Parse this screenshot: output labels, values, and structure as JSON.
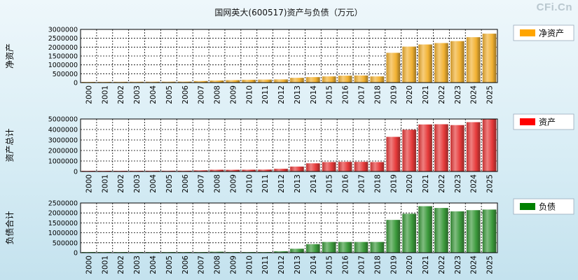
{
  "title": "国网英大(600517)资产与负债（万元）",
  "watermark": "CFi.Cn",
  "colors": {
    "net_assets": "#f2b233",
    "net_assets_legend": "#ffa500",
    "total_assets": "#e63a3a",
    "total_assets_legend": "#ff0000",
    "liabilities": "#3c9a3c",
    "liabilities_legend": "#008000"
  },
  "chart_data": [
    {
      "type": "bar",
      "id": "net-assets",
      "ylabel": "净资产",
      "legend": "净资产",
      "legend_position": "top-right",
      "grid": true,
      "ylim": [
        0,
        3000000
      ],
      "yticks": [
        "3000000",
        "2500000",
        "2000000",
        "1500000",
        "1000000",
        "500000",
        "0"
      ],
      "categories": [
        "2000",
        "2001",
        "2002",
        "2003",
        "2004",
        "2005",
        "2006",
        "2007",
        "2008",
        "2009",
        "2010",
        "2011",
        "2012",
        "2013",
        "2014",
        "2015",
        "2016",
        "2017",
        "2018",
        "2019",
        "2020",
        "2021",
        "2022",
        "2023",
        "2024",
        "2025"
      ],
      "values": [
        38000,
        42000,
        45000,
        48000,
        50000,
        52000,
        56000,
        90000,
        120000,
        140000,
        160000,
        170000,
        180000,
        270000,
        310000,
        350000,
        390000,
        400000,
        350000,
        1680000,
        2030000,
        2150000,
        2230000,
        2340000,
        2560000,
        2760000
      ]
    },
    {
      "type": "bar",
      "id": "total-assets",
      "ylabel": "资产总计",
      "legend": "资产",
      "legend_position": "top-right",
      "grid": true,
      "ylim": [
        0,
        5000000
      ],
      "yticks": [
        "5000000",
        "4000000",
        "3000000",
        "2000000",
        "1000000",
        "0"
      ],
      "categories": [
        "2000",
        "2001",
        "2002",
        "2003",
        "2004",
        "2005",
        "2006",
        "2007",
        "2008",
        "2009",
        "2010",
        "2011",
        "2012",
        "2013",
        "2014",
        "2015",
        "2016",
        "2017",
        "2018",
        "2019",
        "2020",
        "2021",
        "2022",
        "2023",
        "2024",
        "2025"
      ],
      "values": [
        60000,
        62000,
        66000,
        70000,
        72000,
        74000,
        78000,
        110000,
        170000,
        165000,
        175000,
        185000,
        260000,
        470000,
        780000,
        900000,
        920000,
        920000,
        900000,
        3300000,
        3980000,
        4480000,
        4500000,
        4420000,
        4700000,
        4980000
      ]
    },
    {
      "type": "bar",
      "id": "liabilities",
      "ylabel": "负债合计",
      "legend": "负债",
      "legend_position": "top-right",
      "grid": true,
      "ylim": [
        0,
        2500000
      ],
      "yticks": [
        "2500000",
        "2000000",
        "1500000",
        "1000000",
        "500000",
        "0"
      ],
      "categories": [
        "2000",
        "2001",
        "2002",
        "2003",
        "2004",
        "2005",
        "2006",
        "2007",
        "2008",
        "2009",
        "2010",
        "2011",
        "2012",
        "2013",
        "2014",
        "2015",
        "2016",
        "2017",
        "2018",
        "2019",
        "2020",
        "2021",
        "2022",
        "2023",
        "2024",
        "2025"
      ],
      "values": [
        18000,
        20000,
        21000,
        22000,
        22000,
        22000,
        22000,
        20000,
        50000,
        25000,
        20000,
        20000,
        70000,
        200000,
        430000,
        540000,
        540000,
        540000,
        540000,
        1650000,
        1960000,
        2340000,
        2250000,
        2080000,
        2140000,
        2170000
      ]
    }
  ]
}
